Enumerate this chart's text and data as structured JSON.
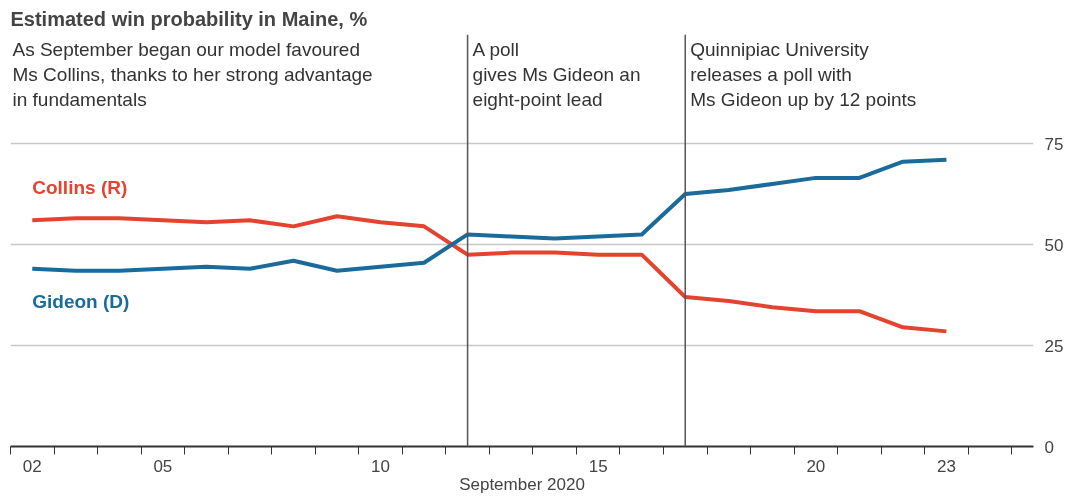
{
  "chart_data": {
    "type": "line",
    "title": "Estimated win probability in Maine, %",
    "xlabel": "September 2020",
    "x": [
      2,
      3,
      4,
      5,
      6,
      7,
      8,
      9,
      10,
      11,
      12,
      13,
      14,
      15,
      16,
      17,
      18,
      19,
      20,
      21,
      22,
      23
    ],
    "series": [
      {
        "name": "Collins (R)",
        "color": "#e3432f",
        "values": [
          56,
          56.5,
          56.5,
          56,
          55.5,
          56,
          54.5,
          57,
          55.5,
          54.5,
          47.5,
          48,
          48,
          47.5,
          47.5,
          37,
          36,
          34.5,
          33.5,
          33.5,
          29.5,
          28.5
        ]
      },
      {
        "name": "Gideon (D)",
        "color": "#1a6b9c",
        "values": [
          44,
          43.5,
          43.5,
          44,
          44.5,
          44,
          46,
          43.5,
          44.5,
          45.5,
          52.5,
          52,
          51.5,
          52,
          52.5,
          62.5,
          63.5,
          65,
          66.5,
          66.5,
          70.5,
          71
        ]
      }
    ],
    "xlim": [
      1.5,
      25
    ],
    "ylim": [
      0,
      102
    ],
    "xticks": [
      {
        "value": 2,
        "label": "02"
      },
      {
        "value": 5,
        "label": "05"
      },
      {
        "value": 10,
        "label": "10"
      },
      {
        "value": 15,
        "label": "15"
      },
      {
        "value": 20,
        "label": "20"
      },
      {
        "value": 23,
        "label": "23"
      },
      {
        "value": 1.5,
        "label": null
      },
      {
        "value": 2.5,
        "label": null
      },
      {
        "value": 3.5,
        "label": null
      },
      {
        "value": 4.5,
        "label": null
      },
      {
        "value": 5.5,
        "label": null
      },
      {
        "value": 6.5,
        "label": null
      },
      {
        "value": 7.5,
        "label": null
      },
      {
        "value": 8.5,
        "label": null
      },
      {
        "value": 9.5,
        "label": null
      },
      {
        "value": 10.5,
        "label": null
      },
      {
        "value": 11.5,
        "label": null
      },
      {
        "value": 12.5,
        "label": null
      },
      {
        "value": 13.5,
        "label": null
      },
      {
        "value": 14.5,
        "label": null
      },
      {
        "value": 15.5,
        "label": null
      },
      {
        "value": 16.5,
        "label": null
      },
      {
        "value": 17.5,
        "label": null
      },
      {
        "value": 18.5,
        "label": null
      },
      {
        "value": 19.5,
        "label": null
      },
      {
        "value": 20.5,
        "label": null
      },
      {
        "value": 21.5,
        "label": null
      },
      {
        "value": 22.5,
        "label": null
      },
      {
        "value": 23.5,
        "label": null
      },
      {
        "value": 24.5,
        "label": null
      }
    ],
    "yticks": [
      0,
      25,
      50,
      75
    ],
    "grid": "y",
    "legend": false,
    "marker": "none",
    "line_style": "solid",
    "ref_lines": [
      {
        "axis": "x",
        "value": 12,
        "label": "A poll\ngives Ms Gideon an\neight-point lead",
        "color": "#555555"
      },
      {
        "axis": "x",
        "value": 17,
        "label": "Quinnipiac University\nreleases a poll with\nMs Gideon up by 12 points",
        "color": "#555555"
      }
    ],
    "annotations": [
      "As September began our model favoured\nMs Collins, thanks to her strong advantage\nin fundamentals"
    ]
  }
}
